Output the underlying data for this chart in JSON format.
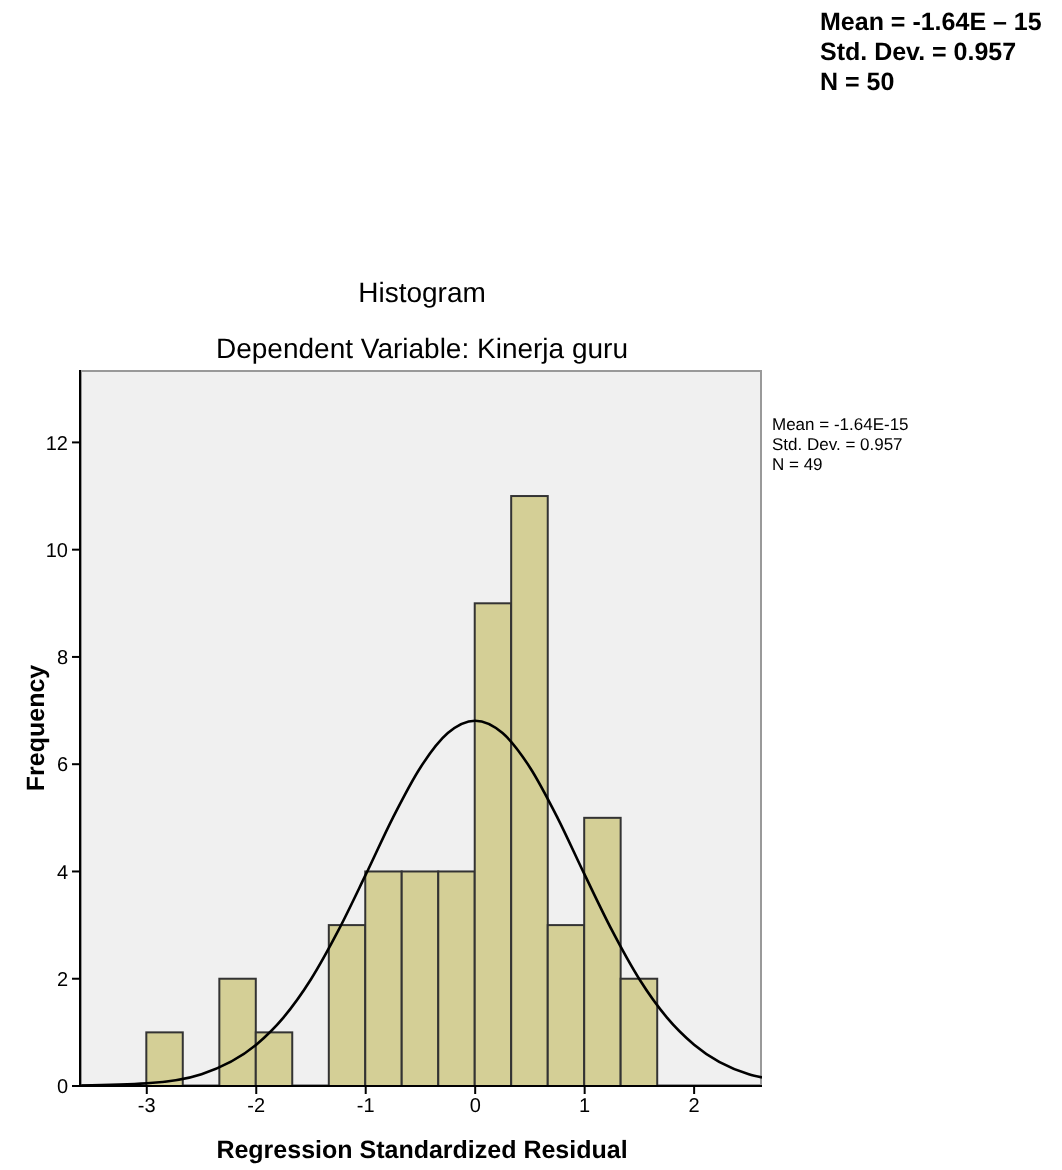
{
  "chart_data": {
    "type": "histogram",
    "title": "Histogram",
    "subtitle": "Dependent Variable: Kinerja guru",
    "xlabel": "Regression Standardized Residual",
    "ylabel": "Frequency",
    "annotations": [
      "Mean = -1.64E – 15",
      "Std. Dev. = 0.957",
      "N = 50",
      "Mean = -1.64E-15",
      "Std. Dev. = 0.957",
      "N = 49"
    ],
    "bins": [
      -3,
      -2.667,
      -2.333,
      -2,
      -1.667,
      -1.333,
      -1,
      -0.667,
      -0.333,
      0,
      0.333,
      0.667,
      1,
      1.333,
      1.667
    ],
    "values": [
      1,
      0,
      2,
      1,
      0,
      3,
      4,
      4,
      4,
      9,
      11,
      3,
      5,
      2
    ],
    "color": "#d4cf96",
    "series": [
      {
        "type": "line",
        "color": "#000000",
        "x": [
          -3.6,
          -3,
          -2.5,
          -2,
          -1.75,
          -1.5,
          -1.25,
          -1,
          -0.75,
          -0.5,
          -0.25,
          0,
          0.25,
          0.5,
          0.75,
          1,
          1.25,
          1.5,
          1.75,
          2,
          2.5,
          2.62
        ],
        "values": [
          0.01,
          0.05,
          0.22,
          0.77,
          1.28,
          1.99,
          2.9,
          3.94,
          5.01,
          5.94,
          6.58,
          6.81,
          6.58,
          5.94,
          5.01,
          3.94,
          2.9,
          1.99,
          1.28,
          0.77,
          0.22,
          0.16
        ]
      }
    ],
    "xlim": [
      -3.61,
      2.62
    ],
    "xticks": [
      -3,
      -2,
      -1,
      0,
      1,
      2
    ],
    "ylim": [
      0,
      13.35
    ],
    "yticks": [
      0,
      2,
      4,
      6,
      8,
      10,
      12
    ],
    "grid": false,
    "marker": "none"
  }
}
